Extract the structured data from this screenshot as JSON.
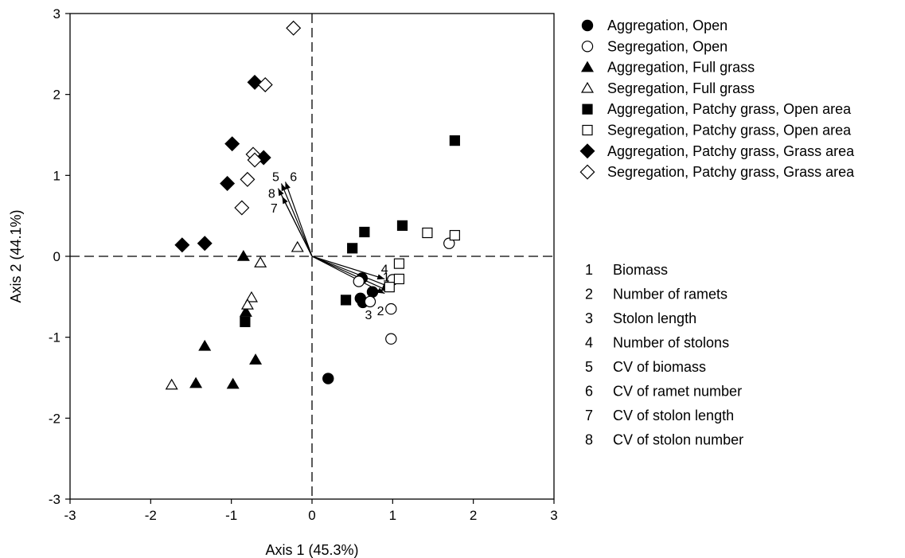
{
  "chart_data": {
    "type": "scatter",
    "xlabel": "Axis 1 (45.3%)",
    "ylabel": "Axis 2 (44.1%)",
    "xlim": [
      -3,
      3
    ],
    "ylim": [
      -3,
      3
    ],
    "xticks": [
      -3,
      -2,
      -1,
      0,
      1,
      2,
      3
    ],
    "yticks": [
      -3,
      -2,
      -1,
      0,
      1,
      2,
      3
    ],
    "grid": false,
    "reference_lines": {
      "x": 0,
      "y": 0,
      "style": "dashed"
    },
    "legend_position": "right-top",
    "series": [
      {
        "name": "Aggregation, Open",
        "marker": "circle",
        "filled": true,
        "points": [
          [
            0.62,
            -0.27
          ],
          [
            0.6,
            -0.52
          ],
          [
            0.63,
            -0.57
          ],
          [
            0.75,
            -0.44
          ],
          [
            0.2,
            -1.51
          ]
        ]
      },
      {
        "name": "Segregation, Open",
        "marker": "circle",
        "filled": false,
        "points": [
          [
            0.58,
            -0.31
          ],
          [
            0.72,
            -0.56
          ],
          [
            0.98,
            -0.65
          ],
          [
            0.98,
            -1.02
          ],
          [
            1.7,
            0.16
          ],
          [
            1.0,
            -0.29
          ]
        ]
      },
      {
        "name": "Aggregation, Full grass",
        "marker": "triangle",
        "filled": true,
        "points": [
          [
            -0.85,
            0.0
          ],
          [
            -0.82,
            -0.69
          ],
          [
            -1.33,
            -1.11
          ],
          [
            -1.44,
            -1.57
          ],
          [
            -0.98,
            -1.58
          ],
          [
            -0.7,
            -1.28
          ]
        ]
      },
      {
        "name": "Segregation, Full grass",
        "marker": "triangle",
        "filled": false,
        "points": [
          [
            -0.18,
            0.11
          ],
          [
            -0.64,
            -0.08
          ],
          [
            -0.75,
            -0.51
          ],
          [
            -0.8,
            -0.6
          ],
          [
            -1.74,
            -1.59
          ]
        ]
      },
      {
        "name": "Aggregation, Patchy grass, Open area",
        "marker": "square",
        "filled": true,
        "points": [
          [
            1.77,
            1.43
          ],
          [
            1.12,
            0.38
          ],
          [
            0.65,
            0.3
          ],
          [
            0.5,
            0.1
          ],
          [
            0.42,
            -0.54
          ],
          [
            -0.83,
            -0.81
          ]
        ]
      },
      {
        "name": "Segregation, Patchy grass, Open area",
        "marker": "square",
        "filled": false,
        "points": [
          [
            1.43,
            0.29
          ],
          [
            1.77,
            0.26
          ],
          [
            1.08,
            -0.09
          ],
          [
            1.08,
            -0.28
          ],
          [
            0.96,
            -0.38
          ]
        ]
      },
      {
        "name": "Aggregation, Patchy grass, Grass area",
        "marker": "diamond",
        "filled": true,
        "points": [
          [
            -0.71,
            2.15
          ],
          [
            -0.99,
            1.39
          ],
          [
            -0.6,
            1.22
          ],
          [
            -1.05,
            0.9
          ],
          [
            -1.61,
            0.14
          ],
          [
            -1.33,
            0.16
          ]
        ]
      },
      {
        "name": "Segregation, Patchy grass, Grass area",
        "marker": "diamond",
        "filled": false,
        "points": [
          [
            -0.23,
            2.82
          ],
          [
            -0.58,
            2.12
          ],
          [
            -0.73,
            1.26
          ],
          [
            -0.71,
            1.19
          ],
          [
            -0.8,
            0.95
          ],
          [
            -0.87,
            0.6
          ]
        ]
      }
    ],
    "vectors": [
      {
        "id": "1",
        "x": 0.97,
        "y": -0.38
      },
      {
        "id": "2",
        "x": 0.95,
        "y": -0.43
      },
      {
        "id": "3",
        "x": 0.9,
        "y": -0.46
      },
      {
        "id": "4",
        "x": 0.9,
        "y": -0.28
      },
      {
        "id": "5",
        "x": -0.38,
        "y": 0.9
      },
      {
        "id": "6",
        "x": -0.33,
        "y": 0.92
      },
      {
        "id": "7",
        "x": -0.37,
        "y": 0.74
      },
      {
        "id": "8",
        "x": -0.42,
        "y": 0.84
      }
    ],
    "vector_label_positions": [
      {
        "id": "1",
        "x": 0.92,
        "y": -0.25
      },
      {
        "id": "2",
        "x": 0.85,
        "y": -0.67
      },
      {
        "id": "3",
        "x": 0.7,
        "y": -0.72
      },
      {
        "id": "4",
        "x": 0.9,
        "y": -0.15
      },
      {
        "id": "5",
        "x": -0.45,
        "y": 0.99
      },
      {
        "id": "6",
        "x": -0.23,
        "y": 0.99
      },
      {
        "id": "7",
        "x": -0.47,
        "y": 0.6
      },
      {
        "id": "8",
        "x": -0.5,
        "y": 0.78
      }
    ],
    "variables_legend": [
      {
        "id": "1",
        "label": "Biomass"
      },
      {
        "id": "2",
        "label": "Number of ramets"
      },
      {
        "id": "3",
        "label": "Stolon length"
      },
      {
        "id": "4",
        "label": "Number of stolons"
      },
      {
        "id": "5",
        "label": "CV of biomass"
      },
      {
        "id": "6",
        "label": "CV of ramet number"
      },
      {
        "id": "7",
        "label": "CV of stolon length"
      },
      {
        "id": "8",
        "label": "CV of stolon number"
      }
    ]
  }
}
